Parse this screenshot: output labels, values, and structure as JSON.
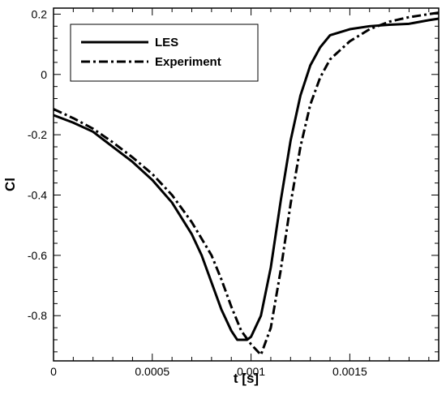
{
  "chart_data": {
    "type": "line",
    "xlabel": "t [s]",
    "ylabel": "Cl",
    "xlim": [
      0,
      0.00195
    ],
    "ylim": [
      -0.95,
      0.22
    ],
    "x_ticks": [
      0,
      0.0005,
      0.001,
      0.0015
    ],
    "x_tick_labels": [
      "0",
      "0.0005",
      "0.001",
      "0.0015"
    ],
    "y_ticks": [
      0.2,
      0,
      -0.2,
      -0.4,
      -0.6,
      -0.8
    ],
    "y_tick_labels": [
      "0.2",
      "0",
      "-0.2",
      "-0.4",
      "-0.6",
      "-0.8"
    ],
    "grid": false,
    "legend_position": "top-left",
    "series": [
      {
        "name": "LES",
        "style": "solid",
        "color": "#000000",
        "points": [
          [
            0,
            -0.135
          ],
          [
            0.0001,
            -0.16
          ],
          [
            0.0002,
            -0.19
          ],
          [
            0.0003,
            -0.24
          ],
          [
            0.0004,
            -0.29
          ],
          [
            0.0005,
            -0.35
          ],
          [
            0.0006,
            -0.425
          ],
          [
            0.0007,
            -0.53
          ],
          [
            0.00075,
            -0.6
          ],
          [
            0.0008,
            -0.69
          ],
          [
            0.00085,
            -0.78
          ],
          [
            0.0009,
            -0.85
          ],
          [
            0.00093,
            -0.88
          ],
          [
            0.00098,
            -0.88
          ],
          [
            0.001,
            -0.87
          ],
          [
            0.00105,
            -0.8
          ],
          [
            0.0011,
            -0.64
          ],
          [
            0.00115,
            -0.42
          ],
          [
            0.0012,
            -0.22
          ],
          [
            0.00125,
            -0.07
          ],
          [
            0.0013,
            0.03
          ],
          [
            0.00135,
            0.09
          ],
          [
            0.0014,
            0.13
          ],
          [
            0.0015,
            0.15
          ],
          [
            0.0016,
            0.16
          ],
          [
            0.0017,
            0.165
          ],
          [
            0.0018,
            0.168
          ],
          [
            0.0019,
            0.18
          ],
          [
            0.00195,
            0.185
          ]
        ]
      },
      {
        "name": "Experiment",
        "style": "dash-dot",
        "color": "#000000",
        "points": [
          [
            0,
            -0.115
          ],
          [
            0.0001,
            -0.145
          ],
          [
            0.0002,
            -0.18
          ],
          [
            0.0003,
            -0.225
          ],
          [
            0.0004,
            -0.275
          ],
          [
            0.0005,
            -0.33
          ],
          [
            0.0006,
            -0.4
          ],
          [
            0.0007,
            -0.49
          ],
          [
            0.0008,
            -0.6
          ],
          [
            0.00085,
            -0.68
          ],
          [
            0.0009,
            -0.77
          ],
          [
            0.00095,
            -0.85
          ],
          [
            0.001,
            -0.895
          ],
          [
            0.00105,
            -0.93
          ],
          [
            0.0011,
            -0.84
          ],
          [
            0.00115,
            -0.65
          ],
          [
            0.0012,
            -0.43
          ],
          [
            0.00125,
            -0.24
          ],
          [
            0.0013,
            -0.1
          ],
          [
            0.00135,
            -0.01
          ],
          [
            0.0014,
            0.05
          ],
          [
            0.0015,
            0.11
          ],
          [
            0.0016,
            0.15
          ],
          [
            0.0017,
            0.175
          ],
          [
            0.0018,
            0.19
          ],
          [
            0.0019,
            0.2
          ],
          [
            0.00195,
            0.205
          ]
        ]
      }
    ]
  }
}
